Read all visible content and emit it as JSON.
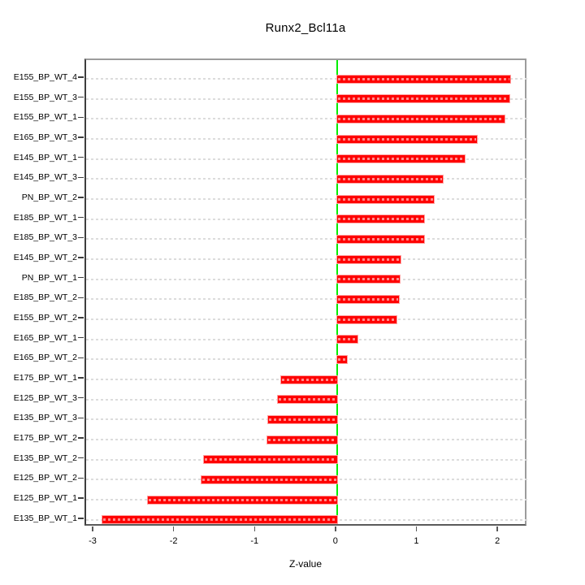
{
  "chart_data": {
    "type": "bar",
    "orientation": "horizontal",
    "title": "Runx2_Bcl11a",
    "xlabel": "Z-value",
    "ylabel": "",
    "categories": [
      "E155_BP_WT_4",
      "E155_BP_WT_3",
      "E155_BP_WT_1",
      "E165_BP_WT_3",
      "E145_BP_WT_1",
      "E145_BP_WT_3",
      "PN_BP_WT_2",
      "E185_BP_WT_1",
      "E185_BP_WT_3",
      "E145_BP_WT_2",
      "PN_BP_WT_1",
      "E185_BP_WT_2",
      "E155_BP_WT_2",
      "E165_BP_WT_1",
      "E165_BP_WT_2",
      "E175_BP_WT_1",
      "E125_BP_WT_3",
      "E135_BP_WT_3",
      "E175_BP_WT_2",
      "E135_BP_WT_2",
      "E125_BP_WT_2",
      "E125_BP_WT_1",
      "E135_BP_WT_1"
    ],
    "values": [
      2.14,
      2.13,
      2.07,
      1.73,
      1.58,
      1.31,
      1.2,
      1.08,
      1.08,
      0.78,
      0.77,
      0.76,
      0.73,
      0.25,
      0.12,
      -0.69,
      -0.73,
      -0.85,
      -0.86,
      -1.64,
      -1.67,
      -2.34,
      -2.9
    ],
    "xlim": [
      -3.1,
      2.36
    ],
    "xticks": [
      -3,
      -2,
      -1,
      0,
      1,
      2
    ],
    "grid": "dashed horizontal line per category, full plot width",
    "zero_line_at": 0,
    "legend": "none"
  },
  "colors": {
    "background": "#FFFFFF",
    "bar_fill": "#FF0000",
    "bar_border": "#FFA3A3",
    "bar_stripe": "#FF9999",
    "gridline": "#DCDCDC",
    "zero_line": "#00EE00",
    "box_light": "#9C9C9C",
    "axis_dark": "#3D3D3D",
    "text": "#000000"
  }
}
